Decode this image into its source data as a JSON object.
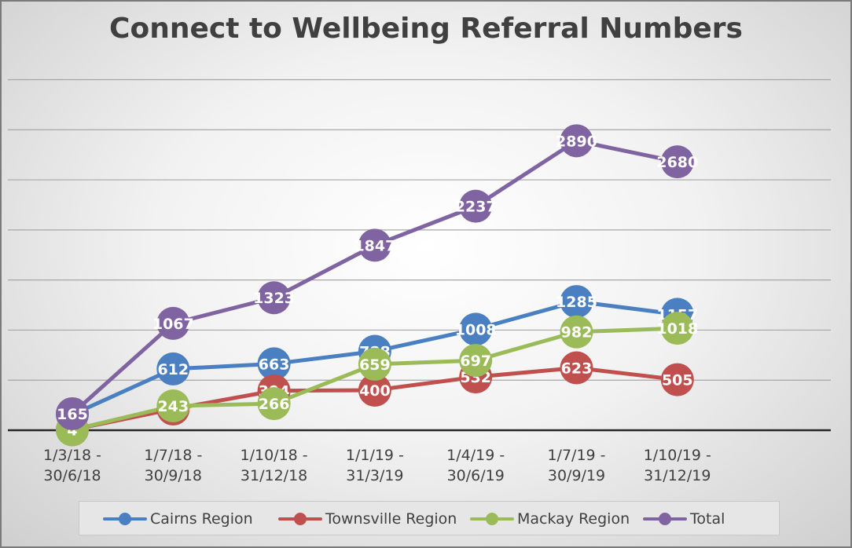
{
  "chart_data": {
    "type": "line",
    "title": "Connect to Wellbeing Referral Numbers",
    "categories": [
      [
        "1/3/18 -",
        "30/6/18"
      ],
      [
        "1/7/18 -",
        "30/9/18"
      ],
      [
        "1/10/18 -",
        "31/12/18"
      ],
      [
        "1/1/19 -",
        "31/3/19"
      ],
      [
        "1/4/19 -",
        "30/6/19"
      ],
      [
        "1/7/19 -",
        "30/9/19"
      ],
      [
        "1/10/19 -",
        "31/12/19"
      ]
    ],
    "ylim": [
      0,
      3500
    ],
    "y_grid_step": 500,
    "grid": true,
    "legend_position": "bottom",
    "series": [
      {
        "name": "Cairns Region",
        "color": "#4a7fc1",
        "values": [
          156,
          612,
          663,
          788,
          1008,
          1285,
          1157
        ]
      },
      {
        "name": "Townsville Region",
        "color": "#c0504d",
        "values": [
          5,
          212,
          394,
          400,
          532,
          623,
          505
        ]
      },
      {
        "name": "Mackay Region",
        "color": "#9bbb59",
        "values": [
          4,
          243,
          266,
          659,
          697,
          982,
          1018
        ]
      },
      {
        "name": "Total",
        "color": "#8064a2",
        "values": [
          165,
          1067,
          1323,
          1847,
          2237,
          2890,
          2680
        ]
      }
    ]
  }
}
